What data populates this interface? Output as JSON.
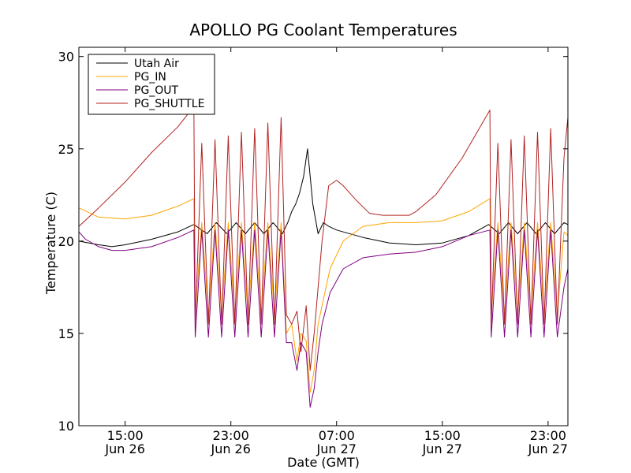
{
  "chart_data": {
    "type": "line",
    "title": "APOLLO PG Coolant Temperatures",
    "xlabel": "Date (GMT)",
    "ylabel": "Temperature (C)",
    "ylim": [
      10,
      30.5
    ],
    "xlim_hours": [
      11.5,
      48.5
    ],
    "yticks": [
      10,
      15,
      20,
      25,
      30
    ],
    "xticks": [
      {
        "hour": 15,
        "time": "15:00",
        "date": "Jun 26"
      },
      {
        "hour": 23,
        "time": "23:00",
        "date": "Jun 26"
      },
      {
        "hour": 31,
        "time": "07:00",
        "date": "Jun 27"
      },
      {
        "hour": 39,
        "time": "15:00",
        "date": "Jun 27"
      },
      {
        "hour": 47,
        "time": "23:00",
        "date": "Jun 27"
      }
    ],
    "legend_position": "top-left",
    "series": [
      {
        "name": "Utah Air",
        "color": "#000000",
        "x": [
          11.5,
          13,
          14,
          15,
          17,
          19,
          20.2,
          21.2,
          21.9,
          22.7,
          23.4,
          24.1,
          24.8,
          25.5,
          26.2,
          26.9,
          27.3,
          27.6,
          27.9,
          28.2,
          28.5,
          28.8,
          29.2,
          29.6,
          30,
          30.4,
          31,
          33,
          35,
          37,
          39,
          41,
          42.5,
          43.3,
          44,
          44.7,
          45.4,
          46.1,
          46.8,
          47.5,
          48.2,
          48.5
        ],
        "values": [
          20,
          19.8,
          19.7,
          19.8,
          20.1,
          20.5,
          20.9,
          20.4,
          21.0,
          20.4,
          21.0,
          20.4,
          21.0,
          20.4,
          21.0,
          20.4,
          21.0,
          21.6,
          22.0,
          22.6,
          23.5,
          25.0,
          22.0,
          20.4,
          21.0,
          20.8,
          20.6,
          20.2,
          19.9,
          19.8,
          19.9,
          20.3,
          20.9,
          20.4,
          21.0,
          20.4,
          21.0,
          20.4,
          21.0,
          20.4,
          21.0,
          20.9
        ]
      },
      {
        "name": "PG_IN",
        "color": "#ffa500",
        "x": [
          11.5,
          13,
          15,
          17,
          19,
          20.2,
          20.3,
          20.8,
          21.3,
          21.8,
          22.3,
          22.8,
          23.3,
          23.8,
          24.3,
          24.8,
          25.3,
          25.8,
          26.3,
          26.8,
          27.2,
          27.6,
          28,
          28.3,
          28.7,
          29,
          29.3,
          29.6,
          29.9,
          30.5,
          31.5,
          33,
          35,
          37,
          39,
          41,
          42.6,
          42.7,
          43.2,
          43.7,
          44.2,
          44.7,
          45.2,
          45.7,
          46.2,
          46.7,
          47.2,
          47.7,
          48.2,
          48.5
        ],
        "values": [
          21.8,
          21.3,
          21.2,
          21.4,
          21.9,
          22.3,
          16,
          21,
          16,
          21,
          16,
          21,
          16,
          21,
          16,
          21,
          16,
          21,
          16,
          21,
          15,
          15.5,
          13.5,
          15,
          14.6,
          11.8,
          13,
          15.5,
          16.5,
          18.5,
          20.0,
          20.8,
          21.0,
          21.0,
          21.1,
          21.6,
          22.3,
          16,
          21,
          16,
          21,
          16,
          21,
          16,
          21,
          16,
          21,
          16,
          20.5,
          20.3
        ]
      },
      {
        "name": "PG_OUT",
        "color": "#800080",
        "x": [
          11.5,
          12,
          13,
          14,
          15,
          17,
          19,
          20.2,
          20.3,
          20.8,
          21.3,
          21.8,
          22.3,
          22.8,
          23.3,
          23.8,
          24.3,
          24.8,
          25.3,
          25.8,
          26.3,
          26.8,
          27.2,
          27.6,
          28,
          28.3,
          28.7,
          29,
          29.3,
          29.6,
          29.9,
          30.5,
          31.5,
          33,
          35,
          37,
          39,
          41,
          42.6,
          42.7,
          43.2,
          43.7,
          44.2,
          44.7,
          45.2,
          45.7,
          46.2,
          46.7,
          47.2,
          47.7,
          48.2,
          48.5
        ],
        "values": [
          20.5,
          20.1,
          19.7,
          19.5,
          19.5,
          19.7,
          20.2,
          20.6,
          14.8,
          20.6,
          14.8,
          20.6,
          14.8,
          20.6,
          14.8,
          20.6,
          14.8,
          20.6,
          14.8,
          20.6,
          14.8,
          20.6,
          14.5,
          14.5,
          13,
          14.5,
          14,
          11,
          12,
          14,
          15.5,
          17.2,
          18.5,
          19.1,
          19.3,
          19.4,
          19.7,
          20.3,
          20.6,
          14.8,
          20.6,
          14.8,
          20.6,
          14.8,
          20.6,
          14.8,
          20.6,
          14.8,
          20.6,
          14.8,
          17.5,
          18.5
        ]
      },
      {
        "name": "PG_SHUTTLE",
        "color": "#b22222",
        "x": [
          11.5,
          13,
          15,
          17,
          19,
          20.2,
          20.3,
          20.8,
          21.3,
          21.8,
          22.3,
          22.8,
          23.3,
          23.8,
          24.3,
          24.8,
          25.3,
          25.8,
          26.3,
          26.8,
          27.2,
          27.6,
          28,
          28.3,
          28.7,
          29,
          29.3,
          29.6,
          29.9,
          30.4,
          31,
          31.5,
          32.5,
          33.5,
          34.5,
          35.5,
          36.5,
          37,
          38.5,
          40.5,
          42.6,
          42.7,
          43.2,
          43.7,
          44.2,
          44.7,
          45.2,
          45.7,
          46.2,
          46.7,
          47.2,
          47.7,
          48.2,
          48.5
        ],
        "values": [
          20.8,
          21.8,
          23.2,
          24.8,
          26.2,
          27.3,
          15.5,
          25.3,
          15.5,
          25.5,
          15.5,
          25.7,
          15.5,
          25.9,
          15.5,
          26.1,
          15.5,
          26.4,
          15.5,
          26.7,
          16,
          15.5,
          16.2,
          14,
          16.5,
          13,
          15,
          17.5,
          20,
          23.0,
          23.3,
          23.0,
          22.2,
          21.5,
          21.4,
          21.4,
          21.4,
          21.6,
          22.5,
          24.5,
          27.1,
          15.5,
          25.3,
          15.5,
          25.5,
          15.5,
          25.7,
          15.5,
          25.9,
          15.5,
          26.1,
          15.5,
          24.5,
          26.7
        ]
      }
    ]
  }
}
